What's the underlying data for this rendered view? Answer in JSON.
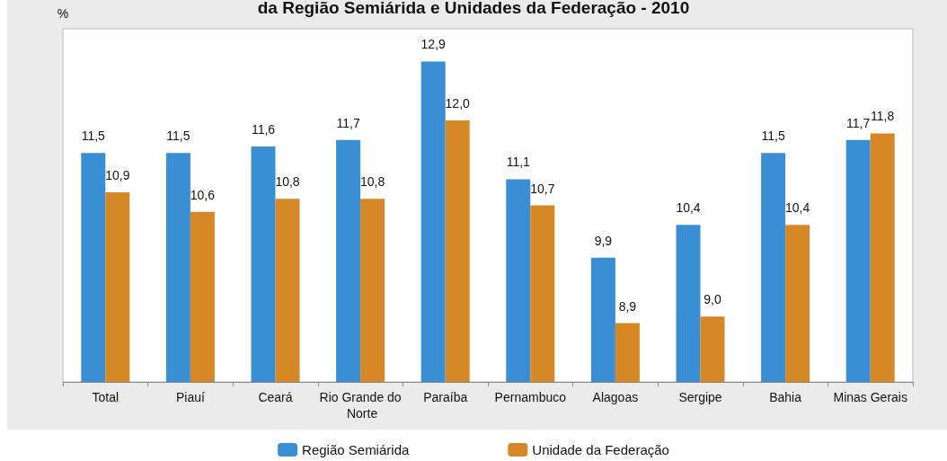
{
  "chart_data": {
    "type": "bar",
    "title": "da Região Semiárida e Unidades da Federação - 2010",
    "ylabel": "%",
    "categories": [
      "Total",
      "Piauí",
      "Ceará",
      "Rio Grande do Norte",
      "Paraíba",
      "Pernambuco",
      "Alagoas",
      "Sergipe",
      "Bahia",
      "Minas Gerais"
    ],
    "series": [
      {
        "name": "Região Semiárida",
        "color": "#3a8fd4",
        "values": [
          11.5,
          11.5,
          11.6,
          11.7,
          12.9,
          11.1,
          9.9,
          10.4,
          11.5,
          11.7
        ],
        "value_labels": [
          "11,5",
          "11,5",
          "11,6",
          "11,7",
          "12,9",
          "11,1",
          "9,9",
          "10,4",
          "11,5",
          "11,7"
        ]
      },
      {
        "name": "Unidade da Federação",
        "color": "#d68826",
        "values": [
          10.9,
          10.6,
          10.8,
          10.8,
          12.0,
          10.7,
          8.9,
          9.0,
          10.4,
          11.8
        ],
        "value_labels": [
          "10,9",
          "10,6",
          "10,8",
          "10,8",
          "12,0",
          "10,7",
          "8,9",
          "9,0",
          "10,4",
          "11,8"
        ]
      }
    ],
    "ylim": [
      8,
      13.4
    ],
    "tick_labels": "x",
    "grid": false,
    "legend": "bottom"
  }
}
